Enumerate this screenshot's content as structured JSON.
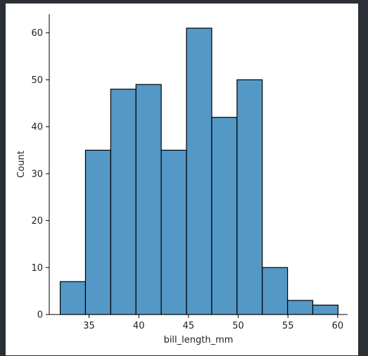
{
  "chart_data": {
    "type": "bar",
    "title": "",
    "xlabel": "bill_length_mm",
    "ylabel": "Count",
    "xlim": [
      31.0,
      61.0
    ],
    "ylim": [
      0,
      64
    ],
    "bin_edges": [
      32.1,
      34.64,
      37.18,
      39.72,
      42.26,
      44.8,
      47.34,
      49.88,
      52.42,
      54.96,
      57.5,
      60.04
    ],
    "values": [
      7,
      35,
      48,
      49,
      35,
      61,
      42,
      50,
      10,
      3,
      2
    ],
    "xticks": [
      35,
      40,
      45,
      50,
      55,
      60
    ],
    "yticks": [
      0,
      10,
      20,
      30,
      40,
      50,
      60
    ],
    "xtick_labels": [
      "35",
      "40",
      "45",
      "50",
      "55",
      "60"
    ],
    "ytick_labels": [
      "0",
      "10",
      "20",
      "30",
      "40",
      "50",
      "60"
    ],
    "bar_color": "#5498c6",
    "edge_color": "#000000",
    "grid": false,
    "legend": "none"
  }
}
